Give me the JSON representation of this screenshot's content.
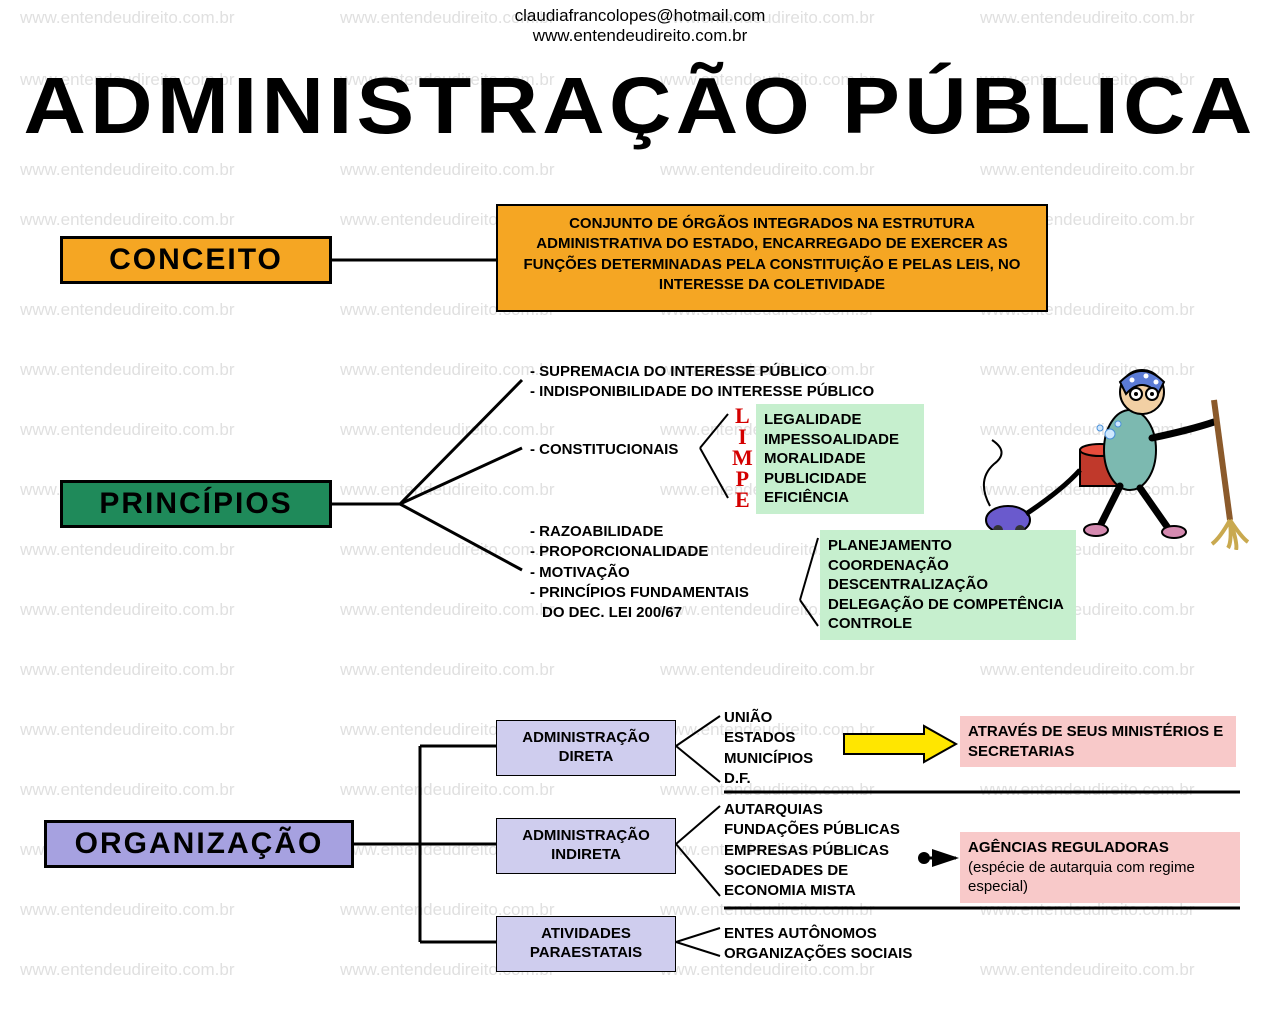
{
  "watermark_text": "www.entendeudireito.com.br",
  "watermark_color": "#e0e0e0",
  "header": {
    "email": "claudiafrancolopes@hotmail.com",
    "site": "www.entendeudireito.com.br"
  },
  "title": "ADMINISTRAÇÃO PÚBLICA",
  "colors": {
    "orange": "#f5a623",
    "green_dark": "#1f8a5a",
    "green_light": "#c6efce",
    "purple": "#a6a1e0",
    "pink": "#f8c9c9",
    "yellow": "#ffe600",
    "red": "#d40000",
    "black": "#000000"
  },
  "conceito": {
    "label": "CONCEITO",
    "text": "CONJUNTO DE ÓRGÃOS INTEGRADOS NA ESTRUTURA ADMINISTRATIVA DO ESTADO, ENCARREGADO DE EXERCER AS FUNÇÕES DETERMINADAS PELA CONSTITUIÇÃO E PELAS LEIS, NO INTERESSE DA COLETIVIDADE"
  },
  "principios": {
    "label": "PRINCÍPIOS",
    "top_items": [
      "- SUPREMACIA DO INTERESSE PÚBLICO",
      "- INDISPONIBILIDADE DO INTERESSE PÚBLICO"
    ],
    "constitucionais_label": "- CONSTITUCIONAIS",
    "limpe_letters": [
      "L",
      "I",
      "M",
      "P",
      "E"
    ],
    "limpe_items": [
      "LEGALIDADE",
      "IMPESSOALIDADE",
      "MORALIDADE",
      "PUBLICIDADE",
      "EFICIÊNCIA"
    ],
    "bottom_items": [
      "- RAZOABILIDADE",
      "- PROPORCIONALIDADE",
      "- MOTIVAÇÃO",
      "- PRINCÍPIOS FUNDAMENTAIS",
      "  DO DEC. LEI 200/67"
    ],
    "dec200_items": [
      "PLANEJAMENTO",
      "COORDENAÇÃO",
      "DESCENTRALIZAÇÃO",
      "DELEGAÇÃO DE COMPETÊNCIA",
      "CONTROLE"
    ]
  },
  "organizacao": {
    "label": "ORGANIZAÇÃO",
    "direta": {
      "label": "ADMINISTRAÇÃO DIRETA",
      "items": [
        "UNIÃO",
        "ESTADOS",
        "MUNICÍPIOS",
        "D.F."
      ],
      "note": "ATRAVÉS DE SEUS MINISTÉRIOS E SECRETARIAS"
    },
    "indireta": {
      "label": "ADMINISTRAÇÃO INDIRETA",
      "items": [
        "AUTARQUIAS",
        "FUNDAÇÕES PÚBLICAS",
        "EMPRESAS PÚBLICAS",
        "SOCIEDADES DE",
        "ECONOMIA MISTA"
      ],
      "note_title": "AGÊNCIAS REGULADORAS",
      "note_sub": "(espécie de autarquia com regime especial)"
    },
    "paraestatais": {
      "label": "ATIVIDADES PARAESTATAIS",
      "items": [
        "ENTES AUTÔNOMOS",
        "ORGANIZAÇÕES SOCIAIS"
      ]
    }
  }
}
